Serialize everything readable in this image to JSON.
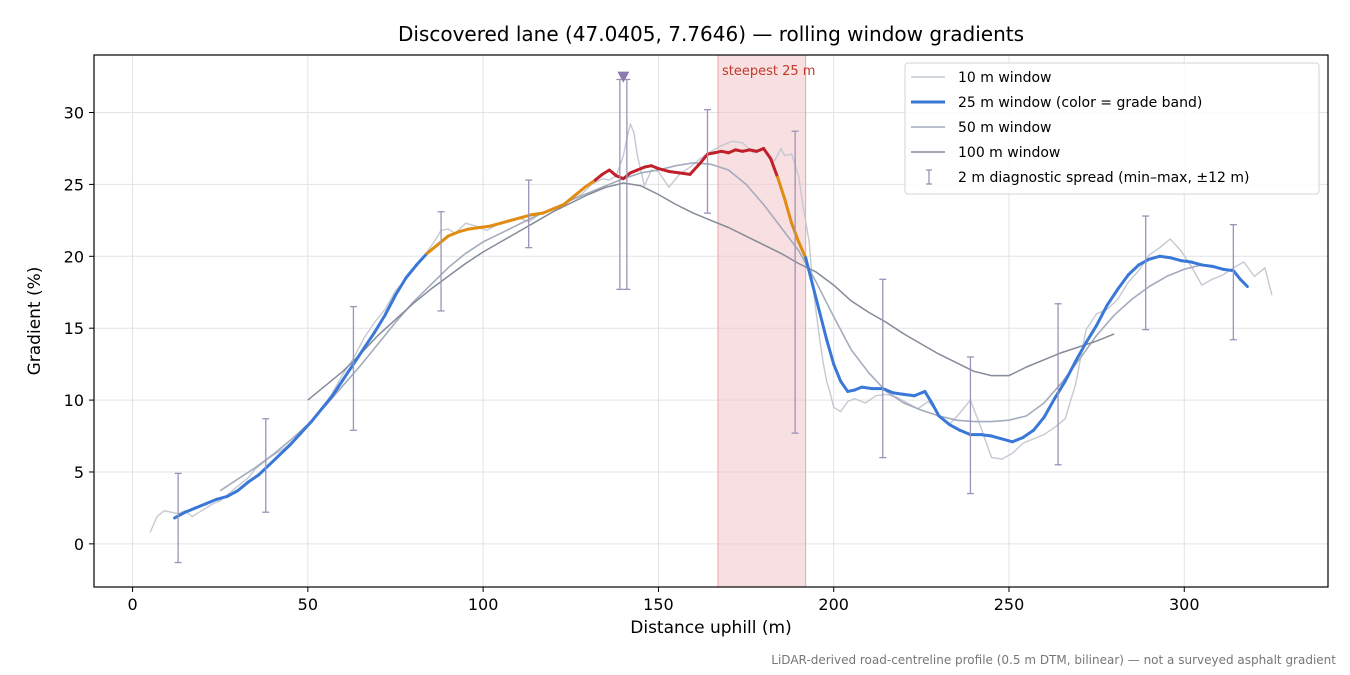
{
  "chart_data": {
    "type": "line",
    "title": "Discovered lane (47.0405, 7.7646) — rolling window gradients",
    "xlabel": "Distance uphill (m)",
    "ylabel": "Gradient (%)",
    "xlim": [
      -11,
      341
    ],
    "ylim": [
      -3,
      34
    ],
    "xticks": [
      0,
      50,
      100,
      150,
      200,
      250,
      300
    ],
    "yticks": [
      0,
      5,
      10,
      15,
      20,
      25,
      30
    ],
    "grid": true,
    "legend_position": "top-right",
    "highlight_band": {
      "x0": 167,
      "x1": 192,
      "label": "steepest 25 m",
      "color": "#f2c4c8"
    },
    "peak_marker": {
      "x": 140,
      "y": 32.5,
      "color": "#8b7bb0"
    },
    "caption": "LiDAR-derived road-centreline profile (0.5 m DTM, bilinear) — not a surveyed asphalt gradient",
    "grade_band_colors": {
      "low": "#3a78d8",
      "mid": "#e08c12",
      "high": "#c0202a"
    },
    "series": [
      {
        "name": "10 m window",
        "color": "#c4c9d2",
        "x": [
          5,
          7,
          9,
          11,
          13,
          15,
          17,
          19,
          21,
          23,
          25,
          27,
          29,
          31,
          33,
          35,
          37,
          39,
          41,
          43,
          45,
          48,
          51,
          54,
          57,
          60,
          63,
          66,
          69,
          72,
          75,
          78,
          81,
          84,
          86,
          88,
          90,
          92,
          95,
          98,
          101,
          104,
          107,
          110,
          113,
          116,
          119,
          122,
          125,
          128,
          131,
          134,
          136,
          138,
          140,
          141,
          142,
          143,
          144,
          146,
          148,
          150,
          153,
          156,
          159,
          162,
          165,
          168,
          171,
          174,
          177,
          180,
          183,
          185,
          186,
          188,
          190,
          191,
          193,
          194,
          195,
          196,
          197,
          198,
          199,
          200,
          202,
          204,
          206,
          209,
          212,
          215,
          218,
          221,
          224,
          227,
          230,
          233,
          236,
          239,
          242,
          245,
          248,
          251,
          254,
          257,
          260,
          263,
          266,
          269,
          272,
          275,
          278,
          281,
          284,
          287,
          290,
          293,
          296,
          299,
          302,
          305,
          308,
          311,
          314,
          317,
          320,
          323,
          325
        ],
        "y": [
          0.8,
          1.9,
          2.3,
          2.2,
          2.1,
          2.3,
          1.9,
          2.2,
          2.5,
          2.8,
          3.0,
          3.4,
          3.8,
          4.2,
          4.6,
          5.2,
          5.6,
          6.0,
          6.3,
          6.6,
          7.0,
          7.6,
          8.5,
          9.4,
          10.5,
          11.8,
          12.9,
          14.3,
          15.4,
          16.3,
          17.6,
          18.4,
          19.3,
          20.3,
          21.0,
          21.8,
          21.9,
          21.6,
          22.3,
          22.1,
          21.8,
          22.2,
          22.5,
          22.7,
          22.4,
          22.9,
          23.2,
          23.4,
          23.9,
          24.3,
          25.0,
          25.4,
          25.3,
          25.6,
          27.0,
          28.2,
          29.2,
          28.6,
          27.0,
          24.9,
          26.0,
          25.9,
          24.8,
          25.7,
          26.2,
          26.8,
          27.3,
          27.7,
          28.0,
          27.9,
          27.2,
          27.4,
          26.6,
          27.5,
          27.0,
          27.1,
          25.6,
          23.9,
          21.0,
          18.0,
          16.1,
          14.2,
          12.6,
          11.3,
          10.5,
          9.5,
          9.2,
          9.9,
          10.1,
          9.8,
          10.3,
          10.4,
          10.2,
          9.8,
          9.4,
          9.9,
          9.0,
          8.3,
          9.1,
          10.0,
          8.1,
          6.0,
          5.9,
          6.3,
          7.0,
          7.3,
          7.6,
          8.1,
          8.7,
          11.1,
          14.9,
          16.0,
          16.3,
          17.0,
          18.2,
          19.0,
          20.1,
          20.6,
          21.2,
          20.4,
          19.3,
          18.0,
          18.4,
          18.7,
          19.2,
          19.6,
          18.6,
          19.2,
          17.3
        ]
      },
      {
        "name": "25 m window (color = grade band)",
        "color": "#3a78d8",
        "x": [
          12,
          15,
          18,
          21,
          24,
          27,
          30,
          33,
          36,
          39,
          42,
          45,
          48,
          51,
          54,
          57,
          60,
          63,
          66,
          69,
          72,
          75,
          78,
          81,
          84,
          87,
          90,
          93,
          96,
          99,
          102,
          105,
          108,
          111,
          114,
          117,
          120,
          123,
          126,
          129,
          132,
          134,
          136,
          138,
          140,
          142,
          144,
          146,
          148,
          150,
          153,
          156,
          159,
          162,
          164,
          166,
          168,
          170,
          172,
          174,
          176,
          178,
          180,
          182,
          184,
          186,
          188,
          190,
          192,
          194,
          196,
          198,
          200,
          202,
          204,
          206,
          208,
          211,
          214,
          217,
          220,
          223,
          226,
          228,
          230,
          233,
          236,
          239,
          242,
          245,
          248,
          251,
          254,
          257,
          260,
          263,
          266,
          269,
          272,
          275,
          278,
          281,
          284,
          287,
          290,
          293,
          296,
          299,
          302,
          305,
          308,
          311,
          314,
          316,
          318
        ],
        "y": [
          1.8,
          2.2,
          2.5,
          2.8,
          3.1,
          3.3,
          3.7,
          4.3,
          4.8,
          5.5,
          6.2,
          6.9,
          7.7,
          8.5,
          9.4,
          10.3,
          11.4,
          12.5,
          13.6,
          14.7,
          15.9,
          17.3,
          18.5,
          19.4,
          20.2,
          20.8,
          21.4,
          21.7,
          21.9,
          22.0,
          22.1,
          22.3,
          22.5,
          22.7,
          22.9,
          23.0,
          23.3,
          23.6,
          24.2,
          24.8,
          25.3,
          25.7,
          26.0,
          25.6,
          25.4,
          25.8,
          26.0,
          26.2,
          26.3,
          26.1,
          25.9,
          25.8,
          25.7,
          26.5,
          27.1,
          27.2,
          27.3,
          27.2,
          27.4,
          27.3,
          27.4,
          27.3,
          27.5,
          26.8,
          25.5,
          24.0,
          22.3,
          21.0,
          19.9,
          18.0,
          16.1,
          14.2,
          12.5,
          11.3,
          10.6,
          10.7,
          10.9,
          10.8,
          10.8,
          10.5,
          10.4,
          10.3,
          10.6,
          9.8,
          8.9,
          8.3,
          7.9,
          7.6,
          7.6,
          7.5,
          7.3,
          7.1,
          7.4,
          7.9,
          8.8,
          10.1,
          11.3,
          12.7,
          14.0,
          15.2,
          16.6,
          17.7,
          18.7,
          19.4,
          19.8,
          20.0,
          19.9,
          19.7,
          19.6,
          19.4,
          19.3,
          19.1,
          19.0,
          18.4,
          17.9
        ]
      },
      {
        "name": "50 m window",
        "color": "#a3acbc",
        "x": [
          25,
          30,
          35,
          40,
          45,
          50,
          55,
          60,
          65,
          70,
          75,
          80,
          85,
          90,
          95,
          100,
          105,
          110,
          115,
          120,
          125,
          130,
          135,
          140,
          145,
          150,
          155,
          160,
          165,
          170,
          175,
          180,
          185,
          190,
          195,
          200,
          205,
          210,
          215,
          220,
          225,
          230,
          235,
          240,
          245,
          250,
          255,
          260,
          265,
          270,
          275,
          280,
          285,
          290,
          295,
          300,
          305
        ],
        "y": [
          3.7,
          4.5,
          5.3,
          6.2,
          7.2,
          8.3,
          9.6,
          11.0,
          12.4,
          13.9,
          15.4,
          16.8,
          18.0,
          19.2,
          20.2,
          21.0,
          21.6,
          22.2,
          22.8,
          23.3,
          23.9,
          24.4,
          24.9,
          25.4,
          25.8,
          26.0,
          26.3,
          26.5,
          26.4,
          26.0,
          25.0,
          23.6,
          22.0,
          20.4,
          18.2,
          15.8,
          13.5,
          11.9,
          10.6,
          9.8,
          9.3,
          8.9,
          8.6,
          8.5,
          8.5,
          8.6,
          8.9,
          9.8,
          11.2,
          12.8,
          14.5,
          15.9,
          17.0,
          17.9,
          18.6,
          19.1,
          19.4
        ]
      },
      {
        "name": "100 m window",
        "color": "#848b99",
        "x": [
          50,
          55,
          60,
          65,
          70,
          75,
          80,
          85,
          90,
          95,
          100,
          105,
          110,
          115,
          120,
          125,
          130,
          135,
          140,
          145,
          150,
          155,
          160,
          165,
          170,
          175,
          180,
          185,
          190,
          195,
          200,
          205,
          210,
          215,
          220,
          225,
          230,
          235,
          240,
          245,
          250,
          255,
          260,
          265,
          270,
          275,
          280
        ],
        "y": [
          10.0,
          11.0,
          12.0,
          13.2,
          14.5,
          15.6,
          16.7,
          17.7,
          18.6,
          19.5,
          20.3,
          21.0,
          21.7,
          22.4,
          23.1,
          23.7,
          24.3,
          24.8,
          25.1,
          24.9,
          24.3,
          23.6,
          23.0,
          22.5,
          22.0,
          21.4,
          20.8,
          20.2,
          19.5,
          18.9,
          18.0,
          16.9,
          16.1,
          15.4,
          14.6,
          13.9,
          13.2,
          12.6,
          12.0,
          11.7,
          11.7,
          12.3,
          12.8,
          13.3,
          13.7,
          14.1,
          14.6
        ]
      }
    ],
    "error_bars": {
      "name": "2 m diagnostic spread (min–max, ±12 m)",
      "color": "#9b93b8",
      "x": [
        13,
        38,
        63,
        88,
        113,
        139,
        141,
        164,
        189,
        214,
        239,
        264,
        289,
        314
      ],
      "low": [
        -1.3,
        2.2,
        7.9,
        16.2,
        20.6,
        17.7,
        17.7,
        23.0,
        7.7,
        6.0,
        3.5,
        5.5,
        14.9,
        14.2
      ],
      "high": [
        4.9,
        8.7,
        16.5,
        23.1,
        25.3,
        32.3,
        32.3,
        30.2,
        28.7,
        18.4,
        13.0,
        16.7,
        22.8,
        22.2
      ]
    }
  }
}
